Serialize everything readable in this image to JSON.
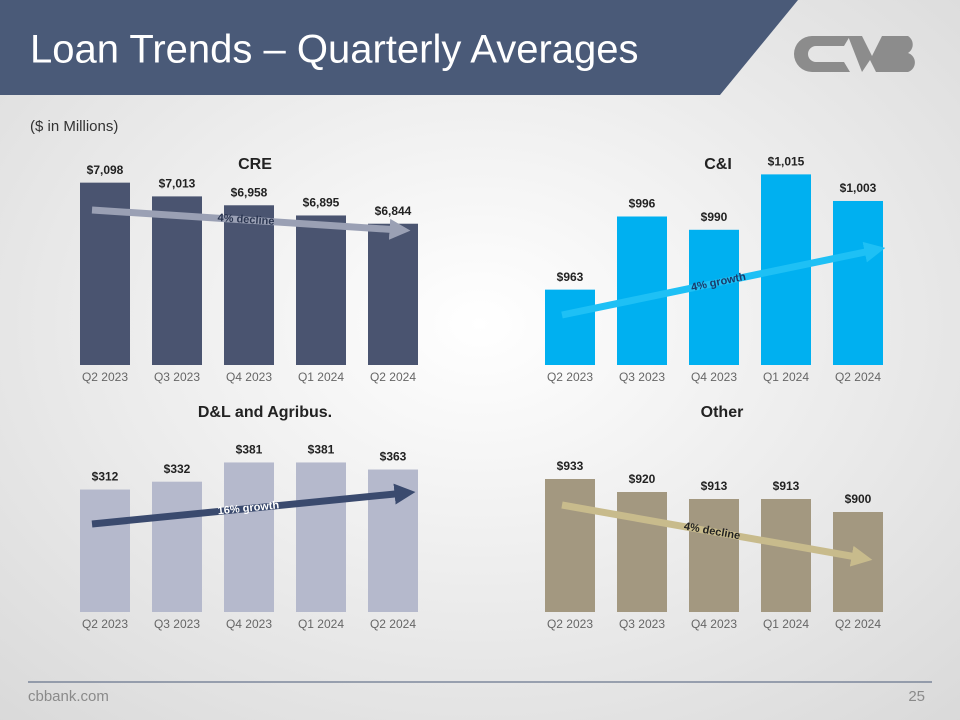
{
  "slide": {
    "title": "Loan Trends – Quarterly Averages",
    "subtitle": "($ in Millions)",
    "footer": "cbbank.com",
    "page_number": 25
  },
  "chart_data": [
    {
      "type": "bar",
      "title": "CRE",
      "categories": [
        "Q2 2023",
        "Q3 2023",
        "Q4 2023",
        "Q1 2024",
        "Q2 2024"
      ],
      "values": [
        7098,
        7013,
        6958,
        6895,
        6844
      ],
      "value_labels": [
        "$7,098",
        "$7,013",
        "$6,958",
        "$6,895",
        "$6,844"
      ],
      "color": "#4a5470",
      "ylim": [
        5970,
        7300
      ],
      "annotation": "4% decline"
    },
    {
      "type": "bar",
      "title": "C&I",
      "categories": [
        "Q2 2023",
        "Q3 2023",
        "Q4 2023",
        "Q1 2024",
        "Q2 2024"
      ],
      "values": [
        963,
        996,
        990,
        1015,
        1003
      ],
      "value_labels": [
        "$963",
        "$996",
        "$990",
        "$1,015",
        "$1,003"
      ],
      "color": "#00b0f0",
      "ylim": [
        929,
        1026
      ],
      "annotation": "4% growth"
    },
    {
      "type": "bar",
      "title": "D&L and Agribus.",
      "categories": [
        "Q2 2023",
        "Q3 2023",
        "Q4 2023",
        "Q1 2024",
        "Q2 2024"
      ],
      "values": [
        312,
        332,
        381,
        381,
        363
      ],
      "value_labels": [
        "$312",
        "$332",
        "$381",
        "$381",
        "$363"
      ],
      "color": "#b5b9cc",
      "ylim": [
        0,
        400
      ],
      "annotation": "16% growth"
    },
    {
      "type": "bar",
      "title": "Other",
      "categories": [
        "Q2 2023",
        "Q3 2023",
        "Q4 2023",
        "Q1 2024",
        "Q2 2024"
      ],
      "values": [
        933,
        920,
        913,
        913,
        900
      ],
      "value_labels": [
        "$933",
        "$920",
        "$913",
        "$913",
        "$900"
      ],
      "color": "#a39880",
      "ylim": [
        800,
        950
      ],
      "annotation": "4% decline"
    }
  ]
}
